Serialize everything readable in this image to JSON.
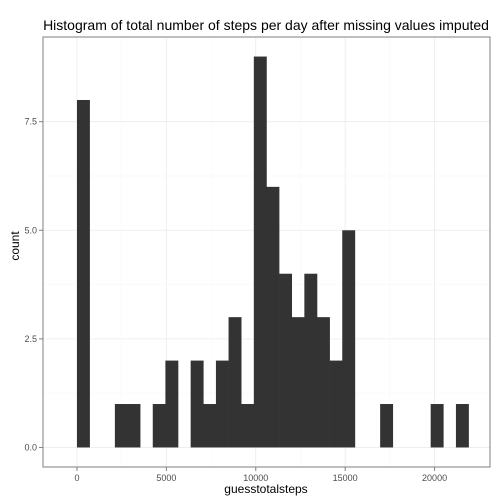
{
  "chart_data": {
    "type": "bar",
    "title": "Histogram of total number of steps per day after missing values imputed",
    "xlabel": "guesstotalsteps",
    "ylabel": "count",
    "xlim": [
      -1900,
      23100
    ],
    "ylim": [
      -0.45,
      9.45
    ],
    "x_ticks": [
      0,
      5000,
      10000,
      15000,
      20000
    ],
    "x_tick_labels": [
      "0",
      "5000",
      "10000",
      "15000",
      "20000"
    ],
    "y_ticks": [
      0,
      2.5,
      5,
      7.5
    ],
    "y_tick_labels": [
      "0.0",
      "2.5",
      "5.0",
      "7.5"
    ],
    "bin_width": 706.5,
    "bars": [
      {
        "x0": 0,
        "count": 8
      },
      {
        "x0": 2119.5,
        "count": 1
      },
      {
        "x0": 2826,
        "count": 1
      },
      {
        "x0": 4239,
        "count": 1
      },
      {
        "x0": 4945.5,
        "count": 2
      },
      {
        "x0": 6358.5,
        "count": 2
      },
      {
        "x0": 7065,
        "count": 1
      },
      {
        "x0": 7771.5,
        "count": 2
      },
      {
        "x0": 8478,
        "count": 3
      },
      {
        "x0": 9184.5,
        "count": 1
      },
      {
        "x0": 9891,
        "count": 9
      },
      {
        "x0": 10597.5,
        "count": 6
      },
      {
        "x0": 11304,
        "count": 4
      },
      {
        "x0": 12010.5,
        "count": 3
      },
      {
        "x0": 12717,
        "count": 4
      },
      {
        "x0": 13423.5,
        "count": 3
      },
      {
        "x0": 14130,
        "count": 2
      },
      {
        "x0": 14836.5,
        "count": 5
      },
      {
        "x0": 16956,
        "count": 1
      },
      {
        "x0": 19782,
        "count": 1
      },
      {
        "x0": 21195,
        "count": 1
      }
    ],
    "bar_color": "#333333",
    "grid": true,
    "grid_color": "#ebebeb",
    "panel_border_color": "#7f7f7f",
    "background": "#ffffff"
  }
}
